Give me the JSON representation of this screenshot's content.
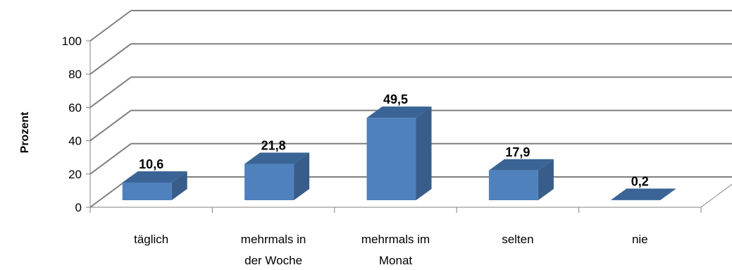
{
  "chart_data": {
    "type": "bar",
    "categories": [
      [
        "täglich"
      ],
      [
        "mehrmals in",
        "der Woche"
      ],
      [
        "mehrmals im",
        "Monat"
      ],
      [
        "selten"
      ],
      [
        "nie"
      ]
    ],
    "values": [
      10.6,
      21.8,
      49.5,
      17.9,
      0.2
    ],
    "value_labels": [
      "10,6",
      "21,8",
      "49,5",
      "17,9",
      "0,2"
    ],
    "ylabel": "Prozent",
    "yticks": [
      "0",
      "20",
      "40",
      "60",
      "80",
      "100"
    ],
    "ylim": [
      0,
      100
    ],
    "grid": true,
    "three_d": true
  },
  "colors": {
    "bar_front": "#4f81bd",
    "bar_side": "#385d8a",
    "bar_top": "#3b6496",
    "grid": "#7f7f7f",
    "axis": "#808080"
  }
}
